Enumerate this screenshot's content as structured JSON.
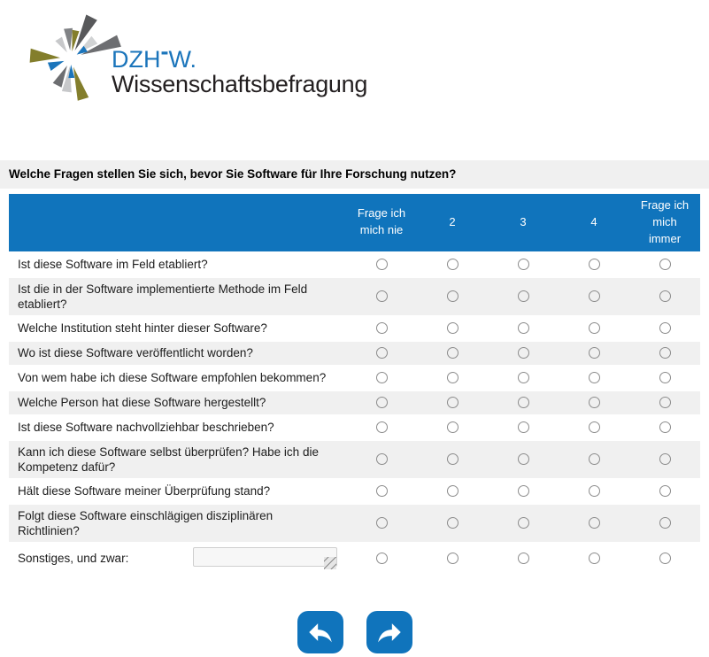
{
  "logo": {
    "brand_prefix": "DZH",
    "brand_dash": "-",
    "brand_suffix": "W.",
    "subtitle": "Wissenschaftsbefragung",
    "burst_colors": {
      "dark_gray": "#58595B",
      "gray": "#6D6E71",
      "mid_gray": "#808285",
      "light_gray": "#C7C8CA",
      "silver": "#D1D3D4",
      "olive": "#837E2C",
      "blue": "#1B75BB"
    }
  },
  "question": {
    "title": "Welche Fragen stellen Sie sich, bevor Sie Software für Ihre Forschung nutzen?"
  },
  "table": {
    "columns": [
      "Frage ich\nmich nie",
      "2",
      "3",
      "4",
      "Frage ich\nmich\nimmer"
    ],
    "rows": [
      {
        "label": "Ist diese Software im Feld etabliert?"
      },
      {
        "label": "Ist die in der Software implementierte Methode im Feld etabliert?"
      },
      {
        "label": "Welche Institution steht hinter dieser Software?"
      },
      {
        "label": "Wo ist diese Software veröffentlicht worden?"
      },
      {
        "label": "Von wem habe ich diese Software empfohlen bekommen?"
      },
      {
        "label": "Welche Person hat diese Software hergestellt?"
      },
      {
        "label": "Ist diese Software nachvollziehbar beschrieben?"
      },
      {
        "label": "Kann ich diese Software selbst überprüfen? Habe ich die Kompetenz dafür?"
      },
      {
        "label": "Hält diese Software meiner Überprüfung stand?"
      },
      {
        "label": "Folgt diese Software einschlägigen disziplinären Richtlinien?"
      },
      {
        "label": "Sonstiges, und zwar:",
        "has_textarea": true,
        "textarea_value": ""
      }
    ]
  },
  "nav": {
    "back_icon": "arrow-back",
    "next_icon": "arrow-forward"
  },
  "colors": {
    "primary_blue": "#1074bc",
    "row_alt_gray": "#f0f0f0",
    "title_bar_gray": "#f0f0f0"
  }
}
